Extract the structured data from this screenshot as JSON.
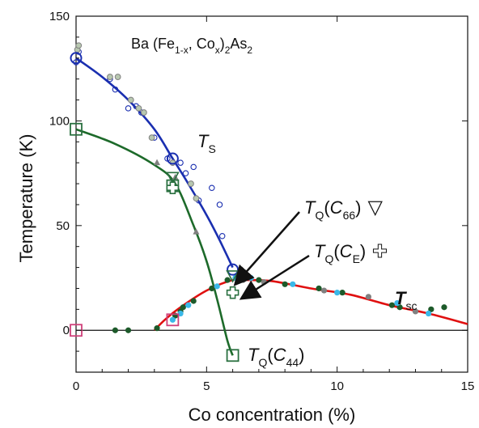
{
  "chart_data": {
    "type": "scatter",
    "title": "",
    "xlabel": "Co concentration (%)",
    "ylabel": "Temperature (K)",
    "xlim": [
      0,
      15
    ],
    "ylim": [
      -20,
      150
    ],
    "x_ticks": [
      0,
      5,
      10,
      15
    ],
    "y_ticks": [
      0,
      50,
      100,
      150
    ],
    "compound": {
      "prefix": "Ba (Fe",
      "sub1": "1-x",
      "mid": ", Co",
      "sub2": "x",
      "close": ")",
      "sub3": "2",
      "suffix": "As",
      "sub4": "2"
    },
    "labels": {
      "ts": {
        "main": "T",
        "sub": "S"
      },
      "tsc": {
        "main": "T",
        "sub": "sc"
      },
      "tq66": {
        "main": "T",
        "sub": "Q",
        "open": "(",
        "arg": "C",
        "argsub": "66",
        "close": ")",
        "symbol": "▽"
      },
      "tqe": {
        "main": "T",
        "sub": "Q",
        "open": "(",
        "arg": "C",
        "argsub": "E",
        "close": ")",
        "symbol": "✚"
      },
      "tq44": {
        "main": "T",
        "sub": "Q",
        "open": "(",
        "arg": "C",
        "argsub": "44",
        "close": ")"
      }
    },
    "colors": {
      "ts_line": "#1a2fb0",
      "tq44_line": "#1d6a2a",
      "tsc_line": "#e01010",
      "marker_dark_green": "#1d5a2a",
      "marker_cyan": "#3ab8e8",
      "marker_grey": "#808080",
      "marker_pink": "#d0407a",
      "square_green": "#2a7040"
    },
    "series": [
      {
        "name": "T_S",
        "kind": "line",
        "color_key": "ts_line",
        "points": [
          [
            0,
            130
          ],
          [
            1,
            121
          ],
          [
            2,
            110
          ],
          [
            3,
            96
          ],
          [
            3.7,
            82
          ],
          [
            4.3,
            70
          ],
          [
            5,
            55
          ],
          [
            5.5,
            43
          ],
          [
            6,
            30
          ]
        ]
      },
      {
        "name": "T_Q(C_44)",
        "kind": "line",
        "color_key": "tq44_line",
        "points": [
          [
            0,
            96
          ],
          [
            1.5,
            89
          ],
          [
            3,
            79
          ],
          [
            3.8,
            70
          ],
          [
            4.5,
            50
          ],
          [
            5,
            33
          ],
          [
            5.4,
            15
          ],
          [
            5.8,
            -5
          ],
          [
            6,
            -12
          ]
        ]
      },
      {
        "name": "T_sc",
        "kind": "line",
        "color_key": "tsc_line",
        "points": [
          [
            3,
            0
          ],
          [
            3.4,
            5
          ],
          [
            4,
            11
          ],
          [
            5,
            19
          ],
          [
            6,
            24
          ],
          [
            6.6,
            24
          ],
          [
            7.5,
            23.5
          ],
          [
            9,
            20
          ],
          [
            10.5,
            17
          ],
          [
            12,
            12
          ],
          [
            13.5,
            8
          ],
          [
            15,
            3
          ]
        ]
      },
      {
        "name": "T_S data",
        "kind": "open-circles",
        "color_key": "ts_line",
        "points": [
          [
            0,
            128
          ],
          [
            0.1,
            133
          ],
          [
            1.3,
            120
          ],
          [
            1.5,
            115
          ],
          [
            2.0,
            106
          ],
          [
            2.3,
            107
          ],
          [
            2.5,
            104
          ],
          [
            3.0,
            92
          ],
          [
            3.5,
            82
          ],
          [
            4.0,
            80
          ],
          [
            4.2,
            75
          ],
          [
            4.5,
            78
          ],
          [
            4.7,
            62
          ],
          [
            5.2,
            68
          ],
          [
            5.5,
            60
          ],
          [
            5.6,
            45
          ]
        ]
      },
      {
        "name": "T_S grey data",
        "kind": "grey-circles",
        "color_key": "marker_grey",
        "points": [
          [
            0.05,
            134
          ],
          [
            0.1,
            136
          ],
          [
            1.3,
            121
          ],
          [
            1.6,
            121
          ],
          [
            2.1,
            110
          ],
          [
            2.4,
            106
          ],
          [
            2.6,
            104
          ],
          [
            2.9,
            92
          ],
          [
            3.7,
            80
          ],
          [
            4.4,
            70
          ],
          [
            4.6,
            63
          ]
        ]
      },
      {
        "name": "T_Q grey triangles",
        "kind": "triangles",
        "color_key": "marker_grey",
        "points": [
          [
            3.1,
            80
          ],
          [
            3.8,
            73
          ],
          [
            4.6,
            47
          ]
        ]
      },
      {
        "name": "T_sc dark data",
        "kind": "filled-circles",
        "color_key": "marker_dark_green",
        "points": [
          [
            1.5,
            0
          ],
          [
            2,
            0
          ],
          [
            3.1,
            1
          ],
          [
            3.8,
            7
          ],
          [
            4.0,
            9
          ],
          [
            4.1,
            11
          ],
          [
            4.5,
            14
          ],
          [
            5.2,
            20
          ],
          [
            5.8,
            24
          ],
          [
            6.3,
            24.5
          ],
          [
            7.0,
            24
          ],
          [
            8,
            22
          ],
          [
            9.3,
            20
          ],
          [
            10.2,
            18
          ],
          [
            12.1,
            12
          ],
          [
            12.4,
            11
          ],
          [
            13.6,
            10
          ],
          [
            14.1,
            11
          ]
        ]
      },
      {
        "name": "T_sc cyan data",
        "kind": "filled-circles",
        "color_key": "marker_cyan",
        "points": [
          [
            3.7,
            5
          ],
          [
            4.0,
            8
          ],
          [
            4.3,
            12
          ],
          [
            5.4,
            21
          ],
          [
            6.1,
            25
          ],
          [
            6.7,
            25
          ],
          [
            8.3,
            22
          ],
          [
            10.0,
            18
          ],
          [
            12.3,
            13
          ],
          [
            13.5,
            8
          ]
        ]
      },
      {
        "name": "T_sc grey data",
        "kind": "filled-circles",
        "color_key": "marker_grey",
        "points": [
          [
            6.4,
            24
          ],
          [
            7.2,
            23
          ],
          [
            9.5,
            19
          ],
          [
            11.2,
            16
          ],
          [
            13.0,
            9
          ]
        ]
      },
      {
        "name": "open circle markers",
        "kind": "big-circles",
        "color_key": "ts_line",
        "points": [
          [
            0,
            130
          ],
          [
            3.7,
            82
          ],
          [
            6,
            29
          ]
        ]
      },
      {
        "name": "square markers",
        "kind": "squares",
        "color_key": "square_green",
        "points": [
          [
            0,
            96
          ],
          [
            3.7,
            69
          ],
          [
            6,
            -12
          ]
        ]
      },
      {
        "name": "pink squares",
        "kind": "squares",
        "color_key": "marker_pink",
        "points": [
          [
            0,
            0
          ],
          [
            3.7,
            5
          ]
        ]
      },
      {
        "name": "C66 triangles",
        "kind": "open-triangles",
        "color_key": "square_green",
        "points": [
          [
            3.7,
            73
          ],
          [
            6,
            26
          ]
        ]
      },
      {
        "name": "CE crosses",
        "kind": "crosses",
        "color_key": "square_green",
        "points": [
          [
            3.7,
            68
          ],
          [
            6,
            18
          ]
        ]
      }
    ]
  }
}
